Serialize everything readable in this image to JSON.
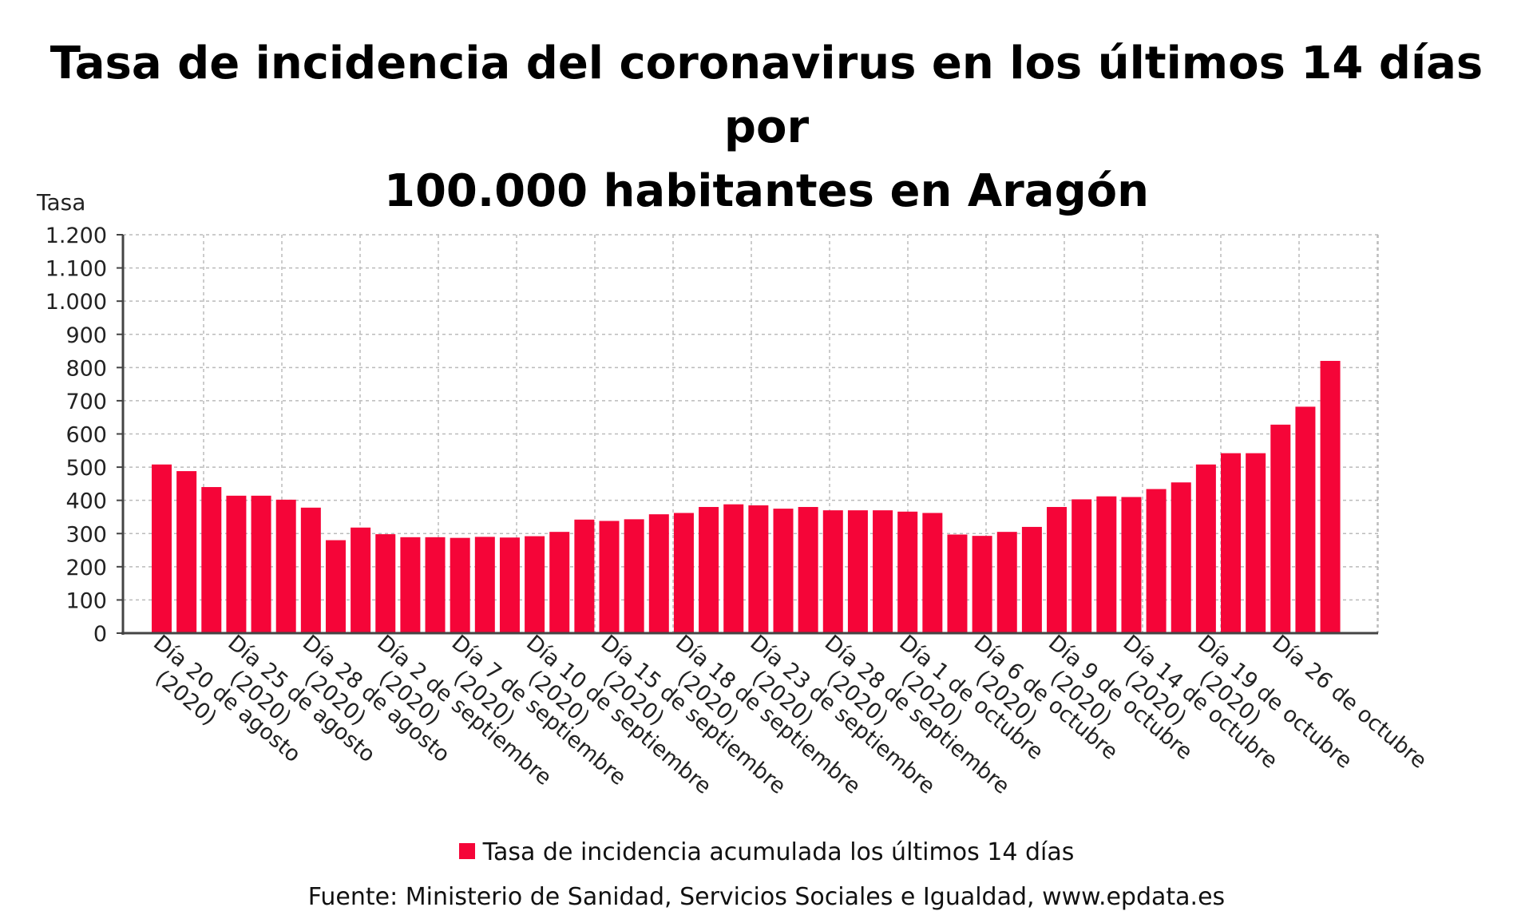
{
  "title_line1": "Tasa de incidencia del coronavirus en los últimos 14 días por",
  "title_line2": "100.000 habitantes en Aragón",
  "legend_label": "Tasa de incidencia acumulada los últimos 14 días",
  "source": "Fuente: Ministerio de Sanidad, Servicios Sociales e Igualdad, www.epdata.es",
  "colors": {
    "bar": "#f50538",
    "grid": "#bbbbbb",
    "axis": "#444444"
  },
  "chart_data": {
    "type": "bar",
    "ylabel": "Tasa",
    "xlabel": "",
    "ylim": [
      0,
      1200
    ],
    "yticks": [
      {
        "value": 0,
        "label": "0"
      },
      {
        "value": 100,
        "label": "100"
      },
      {
        "value": 200,
        "label": "200"
      },
      {
        "value": 300,
        "label": "300"
      },
      {
        "value": 400,
        "label": "400"
      },
      {
        "value": 500,
        "label": "500"
      },
      {
        "value": 600,
        "label": "600"
      },
      {
        "value": 700,
        "label": "700"
      },
      {
        "value": 800,
        "label": "800"
      },
      {
        "value": 900,
        "label": "900"
      },
      {
        "value": 1000,
        "label": "1.000"
      },
      {
        "value": 1100,
        "label": "1.100"
      },
      {
        "value": 1200,
        "label": "1.200"
      }
    ],
    "grid": true,
    "legend_position": "bottom",
    "series": [
      {
        "name": "Tasa de incidencia acumulada los últimos 14 días",
        "values": [
          508,
          488,
          440,
          414,
          414,
          402,
          378,
          280,
          318,
          298,
          289,
          289,
          287,
          290,
          288,
          292,
          305,
          342,
          338,
          343,
          358,
          362,
          380,
          388,
          385,
          375,
          380,
          370,
          370,
          370,
          366,
          362,
          297,
          293,
          305,
          320,
          380,
          403,
          412,
          410,
          434,
          454,
          508,
          542,
          542,
          628,
          682,
          820
        ]
      }
    ],
    "xtick_labels": [
      {
        "index": 0,
        "lines": [
          "Día 20 de agosto",
          "(2020)"
        ]
      },
      {
        "index": 3,
        "lines": [
          "Día 25 de agosto",
          "(2020)"
        ]
      },
      {
        "index": 6,
        "lines": [
          "Día 28 de agosto",
          "(2020)"
        ]
      },
      {
        "index": 9,
        "lines": [
          "Día 2 de septiembre",
          "(2020)"
        ]
      },
      {
        "index": 12,
        "lines": [
          "Día 7 de septiembre",
          "(2020)"
        ]
      },
      {
        "index": 15,
        "lines": [
          "Día 10 de septiembre",
          "(2020)"
        ]
      },
      {
        "index": 18,
        "lines": [
          "Día 15 de septiembre",
          "(2020)"
        ]
      },
      {
        "index": 21,
        "lines": [
          "Día 18 de septiembre",
          "(2020)"
        ]
      },
      {
        "index": 24,
        "lines": [
          "Día 23 de septiembre",
          "(2020)"
        ]
      },
      {
        "index": 27,
        "lines": [
          "Día 28 de septiembre",
          "(2020)"
        ]
      },
      {
        "index": 30,
        "lines": [
          "Día 1 de octubre",
          "(2020)"
        ]
      },
      {
        "index": 33,
        "lines": [
          "Día 6 de octubre",
          "(2020)"
        ]
      },
      {
        "index": 36,
        "lines": [
          "Día 9 de octubre",
          "(2020)"
        ]
      },
      {
        "index": 39,
        "lines": [
          "Día 14 de octubre",
          "(2020)"
        ]
      },
      {
        "index": 42,
        "lines": [
          "Día 19 de octubre",
          "(2020)"
        ]
      },
      {
        "index": 45,
        "lines": [
          "Día 26 de octubre"
        ]
      }
    ]
  }
}
